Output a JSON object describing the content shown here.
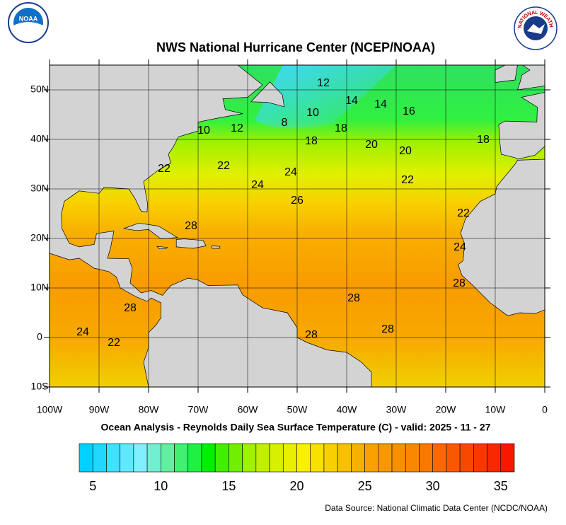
{
  "map": {
    "title": "NWS National Hurricane Center (NCEP/NOAA)",
    "subtitle": "Ocean Analysis - Reynolds Daily Sea Surface Temperature (C) - valid: 2025 - 11 - 27",
    "source": "Data Source: National Climatic Data Center (NCDC/NOAA)",
    "noaa_logo": "NOAA",
    "nws_logo": "NATIONAL WEATHER SERVICE",
    "lon_range": [
      -100,
      0
    ],
    "lat_range": [
      -10,
      55
    ],
    "lon_ticks": [
      {
        "value": -100,
        "label": "100W"
      },
      {
        "value": -90,
        "label": "90W"
      },
      {
        "value": -80,
        "label": "80W"
      },
      {
        "value": -70,
        "label": "70W"
      },
      {
        "value": -60,
        "label": "60W"
      },
      {
        "value": -50,
        "label": "50W"
      },
      {
        "value": -40,
        "label": "40W"
      },
      {
        "value": -30,
        "label": "30W"
      },
      {
        "value": -20,
        "label": "20W"
      },
      {
        "value": -10,
        "label": "10W"
      },
      0
    ],
    "lat_ticks": [
      {
        "value": -10,
        "label": "10S"
      },
      0,
      {
        "value": 10,
        "label": "10N"
      },
      {
        "value": 20,
        "label": "20N"
      },
      {
        "value": 30,
        "label": "30N"
      },
      {
        "value": 40,
        "label": "40N"
      },
      {
        "value": 50,
        "label": "50N"
      }
    ],
    "grid": true,
    "contour_labels": [
      12,
      14,
      14,
      16,
      10,
      8,
      10,
      12,
      18,
      18,
      20,
      20,
      18,
      22,
      22,
      24,
      24,
      22,
      26,
      22,
      28,
      24,
      28,
      28,
      28,
      28,
      28,
      24,
      22
    ],
    "colorbar": {
      "range": [
        4,
        36
      ],
      "ticks": [
        5,
        10,
        15,
        20,
        25,
        30,
        35
      ],
      "colors": [
        "#00d0ff",
        "#20d8ff",
        "#40e0ff",
        "#60e8ff",
        "#80f0ff",
        "#70f0d0",
        "#60f0a0",
        "#40f070",
        "#20f040",
        "#00f000",
        "#40f000",
        "#70f000",
        "#a0f000",
        "#c0f000",
        "#d8f000",
        "#e8f000",
        "#f8f000",
        "#f8e000",
        "#f8d000",
        "#f8c000",
        "#f8b000",
        "#f8a000",
        "#f89800",
        "#f89000",
        "#f88800",
        "#f87800",
        "#f86800",
        "#f85800",
        "#f84800",
        "#f83800",
        "#f82800",
        "#f81800"
      ]
    }
  }
}
